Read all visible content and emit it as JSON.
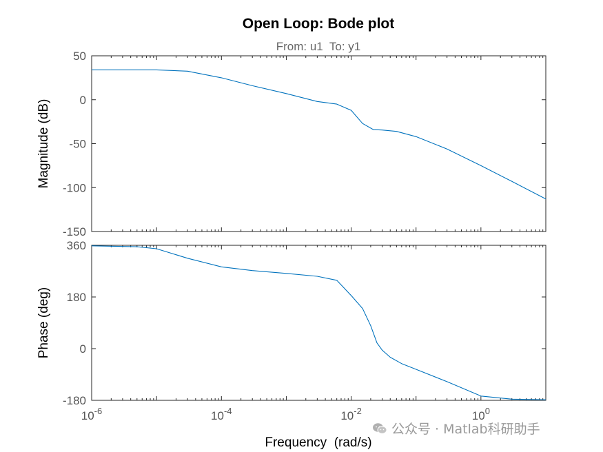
{
  "chart_data": {
    "type": "line",
    "title": "Open Loop: Bode plot",
    "subtitle": "From: u1  To: y1",
    "xlabel": "Frequency  (rad/s)",
    "x_scale": "log",
    "xlim": [
      1e-06,
      10
    ],
    "x_ticks": [
      {
        "base": "10",
        "exp": "-6"
      },
      {
        "base": "10",
        "exp": "-4"
      },
      {
        "base": "10",
        "exp": "-2"
      },
      {
        "base": "10",
        "exp": "0"
      }
    ],
    "grid": false,
    "line_color": "#0072BD",
    "panels": [
      {
        "ylabel": "Magnitude (dB)",
        "ylim": [
          -150,
          50
        ],
        "y_ticks": [
          "50",
          "0",
          "-50",
          "-100",
          "-150"
        ],
        "series": [
          {
            "x": [
              1e-06,
              1e-05,
              3e-05,
              0.0001,
              0.0003,
              0.001,
              0.003,
              0.006,
              0.01,
              0.015,
              0.022,
              0.03,
              0.05,
              0.1,
              0.3,
              1,
              3,
              10
            ],
            "y": [
              34,
              34,
              32.5,
              25,
              16,
              7,
              -2,
              -5,
              -12,
              -27,
              -34,
              -34.5,
              -36,
              -42,
              -56,
              -75,
              -93,
              -113
            ]
          }
        ]
      },
      {
        "ylabel": "Phase (deg)",
        "ylim": [
          -180,
          360
        ],
        "y_ticks": [
          "360",
          "180",
          "0",
          "-180"
        ],
        "series": [
          {
            "x": [
              1e-06,
              5e-06,
              1e-05,
              3e-05,
              0.0001,
              0.0003,
              0.001,
              0.003,
              0.006,
              0.01,
              0.015,
              0.02,
              0.025,
              0.03,
              0.04,
              0.06,
              0.1,
              0.3,
              1,
              3,
              10
            ],
            "y": [
              358,
              355,
              348,
              315,
              285,
              272,
              262,
              252,
              238,
              185,
              140,
              80,
              20,
              -5,
              -30,
              -52,
              -72,
              -115,
              -165,
              -176,
              -178
            ]
          }
        ]
      }
    ]
  },
  "watermark": "公众号 · Matlab科研助手"
}
